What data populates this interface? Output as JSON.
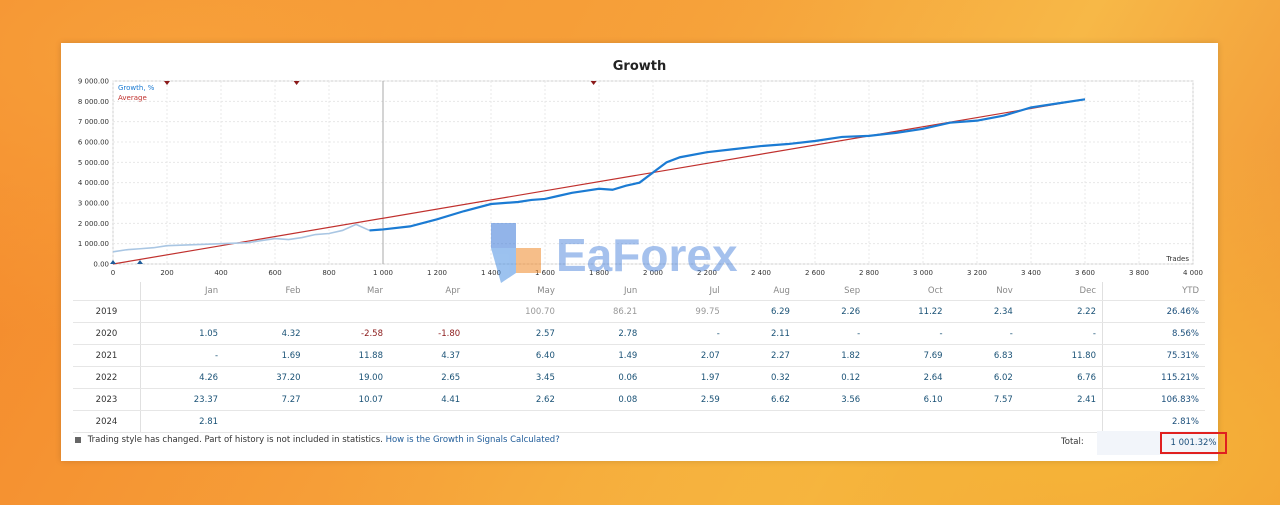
{
  "chart_data": {
    "type": "line",
    "title": "Growth",
    "xlabel": "Trades",
    "ylabel": "",
    "xlim": [
      0,
      4000
    ],
    "ylim": [
      0,
      9000
    ],
    "x_ticks": [
      "0",
      "200",
      "400",
      "600",
      "800",
      "1 000",
      "1 200",
      "1 400",
      "1 600",
      "1 800",
      "2 000",
      "2 200",
      "2 400",
      "2 600",
      "2 800",
      "3 000",
      "3 200",
      "3 400",
      "3 600",
      "3 800",
      "4 000"
    ],
    "y_ticks": [
      "0.00",
      "1 000.00",
      "2 000.00",
      "3 000.00",
      "4 000.00",
      "5 000.00",
      "6 000.00",
      "7 000.00",
      "8 000.00",
      "9 000.00"
    ],
    "grid": true,
    "legend_position": "top-left",
    "series": [
      {
        "name": "Growth, %",
        "color": "#1b7bd3",
        "x": [
          0,
          50,
          100,
          150,
          200,
          300,
          400,
          500,
          600,
          650,
          700,
          750,
          800,
          850,
          900,
          950,
          1000,
          1100,
          1200,
          1300,
          1400,
          1500,
          1550,
          1600,
          1650,
          1700,
          1750,
          1800,
          1850,
          1900,
          1950,
          2000,
          2050,
          2100,
          2200,
          2300,
          2400,
          2500,
          2600,
          2700,
          2800,
          2900,
          3000,
          3100,
          3200,
          3300,
          3350,
          3400,
          3500,
          3600
        ],
        "y": [
          600,
          700,
          750,
          800,
          900,
          950,
          1000,
          1050,
          1250,
          1200,
          1300,
          1450,
          1500,
          1650,
          1950,
          1650,
          1700,
          1850,
          2200,
          2600,
          2950,
          3050,
          3150,
          3200,
          3350,
          3500,
          3600,
          3700,
          3650,
          3850,
          4000,
          4500,
          5000,
          5250,
          5500,
          5650,
          5800,
          5900,
          6050,
          6250,
          6300,
          6450,
          6650,
          6950,
          7050,
          7300,
          7500,
          7700,
          7900,
          8100
        ]
      },
      {
        "name": "Average",
        "color": "#c0312e",
        "x": [
          0,
          3600
        ],
        "y": [
          0,
          8100
        ]
      }
    ],
    "faded_segment_until": 950,
    "markers_top": [
      200,
      680,
      1780
    ],
    "markers_bottom": [
      0,
      100
    ]
  },
  "table": {
    "months": [
      "Jan",
      "Feb",
      "Mar",
      "Apr",
      "May",
      "Jun",
      "Jul",
      "Aug",
      "Sep",
      "Oct",
      "Nov",
      "Dec"
    ],
    "ytd_header": "YTD",
    "rows": [
      {
        "year": "2019",
        "values": [
          "",
          "",
          "",
          "",
          "100.70",
          "86.21",
          "99.75",
          "6.29",
          "2.26",
          "11.22",
          "2.34",
          "2.22"
        ],
        "ytd": "26.46%"
      },
      {
        "year": "2020",
        "values": [
          "1.05",
          "4.32",
          "-2.58",
          "-1.80",
          "2.57",
          "2.78",
          "-",
          "2.11",
          "-",
          "-",
          "-",
          "-"
        ],
        "ytd": "8.56%"
      },
      {
        "year": "2021",
        "values": [
          "-",
          "1.69",
          "11.88",
          "4.37",
          "6.40",
          "1.49",
          "2.07",
          "2.27",
          "1.82",
          "7.69",
          "6.83",
          "11.80"
        ],
        "ytd": "75.31%"
      },
      {
        "year": "2022",
        "values": [
          "4.26",
          "37.20",
          "19.00",
          "2.65",
          "3.45",
          "0.06",
          "1.97",
          "0.32",
          "0.12",
          "2.64",
          "6.02",
          "6.76"
        ],
        "ytd": "115.21%"
      },
      {
        "year": "2023",
        "values": [
          "23.37",
          "7.27",
          "10.07",
          "4.41",
          "2.62",
          "0.08",
          "2.59",
          "6.62",
          "3.56",
          "6.10",
          "7.57",
          "2.41"
        ],
        "ytd": "106.83%"
      },
      {
        "year": "2024",
        "values": [
          "2.81",
          "",
          "",
          "",
          "",
          "",
          "",
          "",
          "",
          "",
          "",
          ""
        ],
        "ytd": "2.81%"
      }
    ]
  },
  "footer": {
    "note": "Trading style has changed. Part of history is not included in statistics.",
    "link": "How is the Growth in Signals Calculated?",
    "total_label": "Total:",
    "total_value": "1 001.32%"
  },
  "watermark": {
    "text": "EaForex",
    "colors": [
      "#3a78d8",
      "#f08a2a",
      "#4caf50"
    ]
  }
}
